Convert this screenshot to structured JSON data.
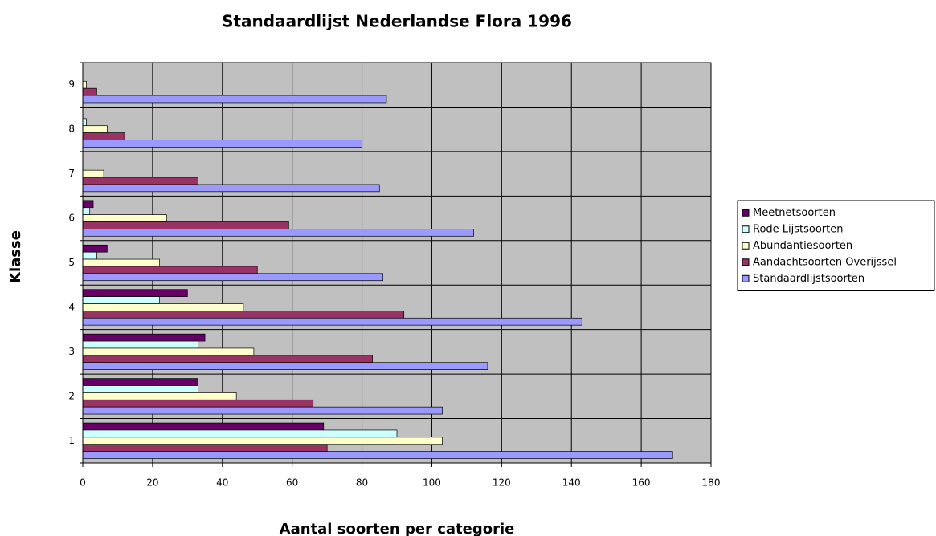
{
  "chart_data": {
    "type": "barh",
    "title": "Standaardlijst Nederlandse Flora 1996",
    "x_label": "Aantal soorten per categorie",
    "y_label": "Klasse",
    "categories": [
      "1",
      "2",
      "3",
      "4",
      "5",
      "6",
      "7",
      "8",
      "9"
    ],
    "series": [
      {
        "name": "Meetnetsoorten",
        "color": "#660066",
        "values": [
          69,
          33,
          35,
          30,
          7,
          3,
          0,
          0,
          0
        ]
      },
      {
        "name": "Rode Lijstsoorten",
        "color": "#ccffff",
        "values": [
          90,
          33,
          33,
          22,
          4,
          2,
          0,
          1,
          0
        ]
      },
      {
        "name": "Abundantiesoorten",
        "color": "#ffffcc",
        "values": [
          103,
          44,
          49,
          46,
          22,
          24,
          6,
          7,
          1
        ]
      },
      {
        "name": "Aandachtsoorten Overijssel",
        "color": "#993366",
        "values": [
          70,
          66,
          83,
          92,
          50,
          59,
          33,
          12,
          4
        ]
      },
      {
        "name": "Standaardlijstsoorten",
        "color": "#9999ff",
        "values": [
          169,
          103,
          116,
          143,
          86,
          112,
          85,
          80,
          87
        ]
      }
    ],
    "xlim": [
      0,
      180
    ],
    "xticks": [
      0,
      20,
      40,
      60,
      80,
      100,
      120,
      140,
      160,
      180
    ],
    "grid": true,
    "legend": "right",
    "background": "#c0c0c0"
  }
}
